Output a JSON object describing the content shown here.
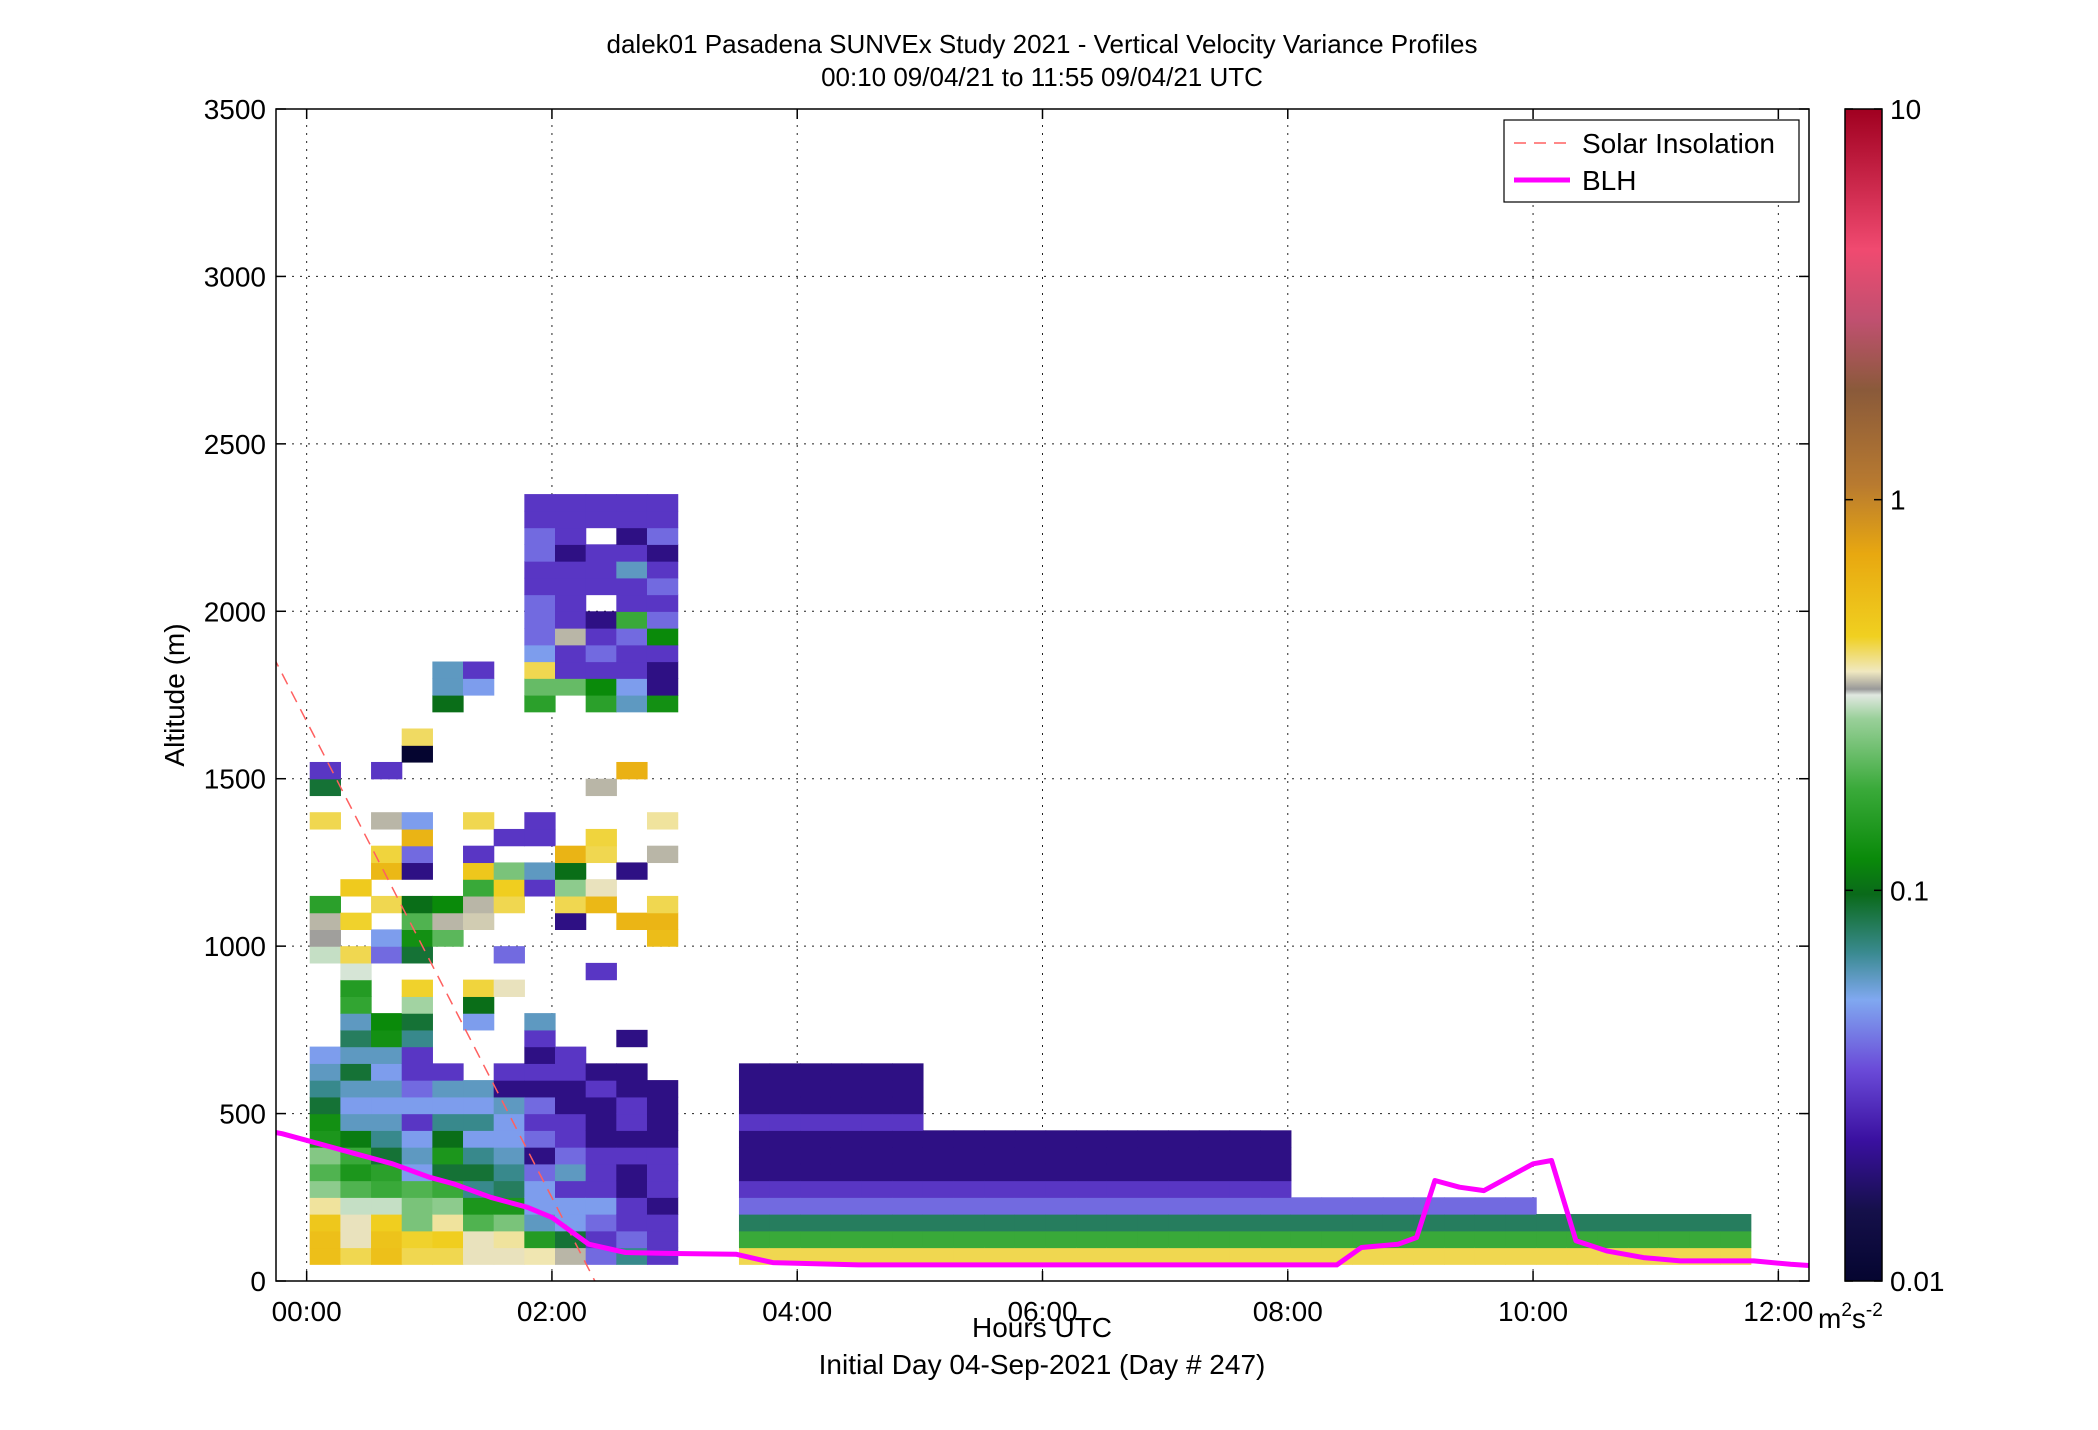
{
  "chart_data": {
    "type": "heatmap",
    "title": "dalek01 Pasadena SUNVEx Study 2021 - Vertical Velocity Variance Profiles",
    "subtitle": "00:10 09/04/21 to 11:55 09/04/21  UTC",
    "xlabel": "Hours UTC",
    "xlabel2": "Initial Day 04-Sep-2021 (Day # 247)",
    "ylabel": "Altitude (m)",
    "xlim": [
      -0.25,
      12.25
    ],
    "ylim": [
      0,
      3500
    ],
    "x_ticks": [
      0,
      2,
      4,
      6,
      8,
      10,
      12
    ],
    "x_tick_labels": [
      "00:00",
      "02:00",
      "04:00",
      "06:00",
      "08:00",
      "10:00",
      "12:00"
    ],
    "y_ticks": [
      0,
      500,
      1000,
      1500,
      2000,
      2500,
      3000,
      3500
    ],
    "y_tick_labels": [
      "0",
      "500",
      "1000",
      "1500",
      "2000",
      "2500",
      "3000",
      "3500"
    ],
    "grid": true,
    "legend_position": "top-right",
    "legend": [
      {
        "label": "Solar Insolation",
        "style": "dashed",
        "color": "#ff6060"
      },
      {
        "label": "BLH",
        "style": "solid",
        "color": "#ff00ff"
      }
    ],
    "colorbar": {
      "scale": "log",
      "range": [
        0.01,
        10
      ],
      "ticks": [
        0.01,
        0.1,
        1,
        10
      ],
      "tick_labels": [
        "0.01",
        "0.1",
        "1",
        "10"
      ],
      "unit_base": "m",
      "unit_sup1": "2",
      "unit_mid": "s",
      "unit_sup2": "-2",
      "stops": [
        [
          0.0,
          "#050530"
        ],
        [
          0.06,
          "#15104a"
        ],
        [
          0.12,
          "#3a10a0"
        ],
        [
          0.18,
          "#6a4ad8"
        ],
        [
          0.24,
          "#80a8f0"
        ],
        [
          0.28,
          "#3a8a90"
        ],
        [
          0.33,
          "#0a6a1a"
        ],
        [
          0.36,
          "#0a8a0a"
        ],
        [
          0.42,
          "#3aaa3a"
        ],
        [
          0.48,
          "#9ad09a"
        ],
        [
          0.5,
          "#e0e8e0"
        ],
        [
          0.505,
          "#999999"
        ],
        [
          0.52,
          "#f0e8c0"
        ],
        [
          0.55,
          "#f0d020"
        ],
        [
          0.62,
          "#e8a810"
        ],
        [
          0.68,
          "#b87a30"
        ],
        [
          0.76,
          "#8a5a3a"
        ],
        [
          0.82,
          "#c05070"
        ],
        [
          0.88,
          "#f04a70"
        ],
        [
          1.0,
          "#a00020"
        ]
      ]
    },
    "solar_insolation": {
      "x": [
        -0.35,
        2.35
      ],
      "y": [
        1920,
        0
      ]
    },
    "blh": {
      "x": [
        -0.5,
        -0.2,
        0.1,
        0.4,
        0.7,
        1.0,
        1.2,
        1.5,
        1.8,
        2.0,
        2.3,
        2.6,
        3.0,
        3.5,
        3.8,
        4.5,
        5.5,
        6.5,
        7.5,
        8.0,
        8.4,
        8.6,
        8.9,
        9.05,
        9.2,
        9.4,
        9.6,
        9.8,
        10.0,
        10.15,
        10.35,
        10.6,
        10.9,
        11.2,
        11.5,
        11.8,
        12.1,
        12.3
      ],
      "y": [
        460,
        440,
        410,
        380,
        350,
        310,
        290,
        250,
        220,
        190,
        110,
        85,
        82,
        80,
        55,
        48,
        48,
        48,
        48,
        48,
        48,
        100,
        110,
        130,
        300,
        280,
        270,
        310,
        350,
        360,
        120,
        90,
        70,
        60,
        60,
        60,
        50,
        45
      ]
    },
    "grid_cells": {
      "x_start": 0.15,
      "dx": 0.25,
      "y_start": 75,
      "dy": 50,
      "columns": [
        [
          0.55,
          0.55,
          0.5,
          0.38,
          0.26,
          0.2,
          0.25,
          0.14,
          0.13,
          0.09,
          0.07,
          0.06,
          0.05,
          null,
          null,
          null,
          null,
          null,
          0.3,
          0.33,
          0.34,
          0.16,
          null,
          null,
          null,
          null,
          0.42,
          null,
          0.09,
          0.03,
          null,
          null,
          null,
          null,
          null,
          null,
          null,
          null,
          null,
          null,
          null,
          null,
          null,
          null,
          null,
          null,
          null,
          null,
          null,
          null,
          null,
          null,
          null,
          null,
          null,
          null,
          null,
          null
        ],
        [
          0.42,
          0.36,
          0.36,
          0.3,
          0.2,
          0.14,
          0.18,
          0.11,
          0.06,
          0.05,
          0.06,
          0.09,
          0.06,
          0.08,
          0.06,
          0.17,
          0.15,
          0.31,
          0.42,
          null,
          0.44,
          null,
          0.48,
          null,
          null,
          null,
          null,
          null,
          null,
          null,
          null,
          null,
          null,
          null,
          null,
          null,
          null,
          null,
          null,
          null,
          null,
          null,
          null,
          null,
          null,
          null,
          null,
          null,
          null,
          null,
          null,
          null,
          null,
          null,
          null,
          null,
          null,
          null
        ],
        [
          0.54,
          0.52,
          0.46,
          0.3,
          0.18,
          0.16,
          0.09,
          0.07,
          0.06,
          0.05,
          0.06,
          0.05,
          0.06,
          0.13,
          0.12,
          null,
          null,
          null,
          0.04,
          0.05,
          null,
          0.42,
          null,
          0.6,
          0.43,
          null,
          0.34,
          null,
          null,
          0.03,
          null,
          null,
          null,
          null,
          null,
          null,
          null,
          null,
          null,
          null,
          null,
          null,
          null,
          null,
          null,
          null,
          null,
          null,
          null,
          null,
          null,
          null,
          null,
          null,
          null,
          null,
          null,
          null
        ],
        [
          0.42,
          0.44,
          0.24,
          0.24,
          0.2,
          0.05,
          0.06,
          0.05,
          0.03,
          0.05,
          0.04,
          0.03,
          0.03,
          0.07,
          0.09,
          0.28,
          0.44,
          null,
          0.09,
          0.13,
          0.2,
          0.1,
          null,
          0.02,
          0.04,
          0.63,
          0.05,
          null,
          null,
          null,
          0.01,
          0.41,
          null,
          null,
          null,
          null,
          null,
          null,
          null,
          null,
          null,
          null,
          null,
          null,
          null,
          null,
          null,
          null,
          null,
          null,
          null,
          null,
          null,
          null,
          null,
          null,
          null,
          null
        ],
        [
          0.42,
          0.46,
          0.38,
          0.26,
          0.18,
          0.09,
          0.14,
          0.1,
          0.07,
          0.05,
          0.06,
          0.03,
          null,
          null,
          null,
          null,
          null,
          null,
          null,
          0.21,
          0.34,
          0.12,
          null,
          null,
          null,
          null,
          null,
          null,
          null,
          null,
          null,
          null,
          null,
          0.1,
          0.06,
          0.06,
          null,
          null,
          null,
          null,
          null,
          null,
          null,
          null,
          null,
          null,
          null,
          null,
          null,
          null,
          null,
          null,
          null,
          null,
          null,
          null,
          null,
          null
        ],
        [
          0.36,
          0.36,
          0.2,
          0.14,
          0.07,
          0.09,
          0.07,
          0.05,
          0.07,
          0.05,
          0.06,
          null,
          null,
          null,
          0.05,
          0.1,
          0.43,
          null,
          null,
          null,
          0.35,
          0.34,
          0.18,
          0.5,
          0.03,
          null,
          0.42,
          null,
          null,
          null,
          null,
          null,
          null,
          null,
          0.05,
          0.03,
          null,
          null,
          null,
          null,
          null,
          null,
          null,
          null,
          null,
          null,
          null,
          null,
          null,
          null,
          null,
          null,
          null,
          null,
          null,
          null,
          null,
          null
        ],
        [
          0.36,
          0.38,
          0.24,
          0.14,
          0.08,
          0.07,
          0.06,
          0.05,
          0.05,
          0.06,
          0.02,
          0.03,
          null,
          null,
          null,
          null,
          0.36,
          null,
          0.04,
          null,
          null,
          0.42,
          0.46,
          0.24,
          null,
          0.03,
          null,
          null,
          null,
          null,
          null,
          null,
          null,
          null,
          null,
          null,
          null,
          null,
          null,
          null,
          null,
          null,
          null,
          null,
          null,
          null,
          null,
          null,
          null,
          null,
          null,
          null,
          null,
          null,
          null,
          null,
          null,
          null
        ],
        [
          0.37,
          0.15,
          0.06,
          0.05,
          0.05,
          0.04,
          0.02,
          0.04,
          0.03,
          0.04,
          0.02,
          0.03,
          0.02,
          0.03,
          0.06,
          null,
          null,
          null,
          null,
          null,
          null,
          null,
          0.03,
          0.06,
          null,
          0.03,
          0.03,
          null,
          null,
          null,
          null,
          null,
          null,
          0.16,
          0.22,
          0.42,
          0.05,
          0.04,
          0.04,
          0.04,
          0.03,
          0.03,
          0.04,
          0.04,
          0.03,
          0.03,
          null,
          null,
          null,
          null,
          null,
          null,
          null,
          null,
          null,
          null,
          null,
          null
        ],
        [
          0.34,
          0.09,
          0.05,
          0.05,
          0.03,
          0.06,
          0.04,
          0.03,
          0.03,
          0.02,
          0.02,
          0.03,
          0.03,
          null,
          null,
          null,
          null,
          null,
          null,
          null,
          0.02,
          0.42,
          0.26,
          0.1,
          0.63,
          null,
          null,
          null,
          null,
          null,
          null,
          null,
          null,
          null,
          0.22,
          0.03,
          0.03,
          0.34,
          0.03,
          0.03,
          0.03,
          0.03,
          0.02,
          0.03,
          0.03,
          0.03,
          null,
          null,
          null,
          null,
          null,
          null,
          null,
          null,
          null,
          null,
          null,
          null
        ],
        [
          0.04,
          0.03,
          0.04,
          0.05,
          0.03,
          0.03,
          0.03,
          0.02,
          0.02,
          0.02,
          0.03,
          0.02,
          null,
          null,
          null,
          null,
          null,
          0.03,
          null,
          null,
          null,
          0.6,
          0.36,
          null,
          0.42,
          0.43,
          null,
          null,
          0.34,
          null,
          null,
          null,
          null,
          0.16,
          0.12,
          0.03,
          0.04,
          0.03,
          0.02,
          null,
          0.03,
          0.03,
          0.03,
          null,
          0.03,
          0.03,
          null,
          null,
          null,
          null,
          null,
          null,
          null,
          null,
          null,
          null,
          null,
          null
        ],
        [
          0.07,
          0.04,
          0.03,
          0.03,
          0.02,
          0.02,
          0.03,
          0.02,
          0.03,
          0.03,
          0.02,
          0.02,
          null,
          0.02,
          null,
          null,
          null,
          null,
          null,
          null,
          0.62,
          null,
          null,
          0.02,
          null,
          null,
          null,
          null,
          null,
          0.65,
          null,
          null,
          null,
          0.06,
          0.05,
          0.03,
          0.03,
          0.04,
          0.18,
          0.03,
          0.03,
          0.06,
          0.03,
          0.02,
          0.03,
          0.03,
          null,
          null,
          null,
          null,
          null,
          null,
          null,
          null,
          null,
          null,
          null,
          null
        ],
        [
          0.03,
          0.03,
          0.03,
          0.02,
          0.03,
          0.03,
          0.03,
          0.02,
          0.02,
          0.02,
          0.02,
          null,
          null,
          null,
          null,
          null,
          null,
          null,
          null,
          0.56,
          0.62,
          0.42,
          null,
          null,
          0.34,
          null,
          0.38,
          null,
          null,
          null,
          null,
          null,
          null,
          0.13,
          0.02,
          0.02,
          0.03,
          0.12,
          0.04,
          0.03,
          0.04,
          0.03,
          0.02,
          0.04,
          0.03,
          0.03,
          null,
          null,
          null,
          null,
          null,
          null,
          null,
          null,
          null,
          null,
          null,
          null
        ]
      ],
      "flat_left": [
        0.42,
        0.18,
        0.08,
        0.04,
        0.03,
        0.02,
        0.02,
        0.02,
        0.03,
        0.02,
        0.02,
        0.02
      ]
    }
  }
}
